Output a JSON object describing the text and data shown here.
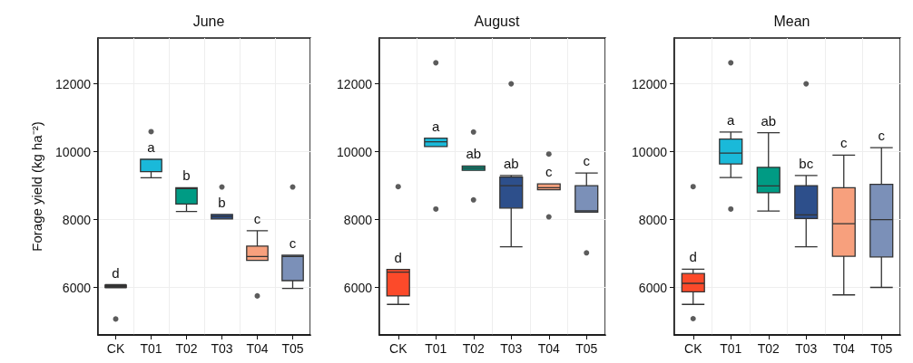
{
  "chart_data": [
    {
      "type": "box",
      "title": "June",
      "ylabel": "Forage yield (kg ha⁻²)",
      "categories": [
        "CK",
        "T01",
        "T02",
        "T03",
        "T04",
        "T05"
      ],
      "colors": [
        "#fc4a2a",
        "#1ab9d9",
        "#009b84",
        "#2d4f8b",
        "#f7a07d",
        "#7b90b8"
      ],
      "boxes": [
        {
          "low": 5990,
          "q1": 6000,
          "median": 6040,
          "q3": 6070,
          "high": 6080,
          "outliers": [
            5070
          ]
        },
        {
          "low": 9230,
          "q1": 9410,
          "median": 9770,
          "q3": 9780,
          "high": 9780,
          "outliers": [
            10590
          ]
        },
        {
          "low": 8240,
          "q1": 8460,
          "median": 8910,
          "q3": 8940,
          "high": 8940
        },
        {
          "low": 8020,
          "q1": 8020,
          "median": 8090,
          "q3": 8150,
          "high": 8150,
          "outliers": [
            8960
          ]
        },
        {
          "low": 6800,
          "q1": 6800,
          "median": 6910,
          "q3": 7220,
          "high": 7670,
          "outliers": [
            5750
          ]
        },
        {
          "low": 5970,
          "q1": 6200,
          "median": 6910,
          "q3": 6950,
          "high": 6950,
          "outliers": [
            8960
          ]
        }
      ],
      "ylim": [
        4600,
        13350
      ],
      "yticks": [
        6000,
        8000,
        10000,
        12000
      ],
      "grid": true,
      "annotations": [
        "d",
        "a",
        "b",
        "b",
        "c",
        "c"
      ]
    },
    {
      "type": "box",
      "title": "August",
      "categories": [
        "CK",
        "T01",
        "T02",
        "T03",
        "T04",
        "T05"
      ],
      "colors": [
        "#fc4a2a",
        "#1ab9d9",
        "#009b84",
        "#2d4f8b",
        "#f7a07d",
        "#7b90b8"
      ],
      "boxes": [
        {
          "low": 5500,
          "q1": 5750,
          "median": 6450,
          "q3": 6530,
          "high": 6530,
          "outliers": [
            8970
          ]
        },
        {
          "low": 10150,
          "q1": 10150,
          "median": 10290,
          "q3": 10400,
          "high": 10400,
          "outliers": [
            12620,
            8310
          ]
        },
        {
          "low": 9450,
          "q1": 9450,
          "median": 9520,
          "q3": 9580,
          "high": 9580,
          "outliers": [
            10580,
            8580
          ]
        },
        {
          "low": 7200,
          "q1": 8340,
          "median": 9000,
          "q3": 9250,
          "high": 9300,
          "outliers": [
            12000
          ]
        },
        {
          "low": 8880,
          "q1": 8880,
          "median": 8940,
          "q3": 9050,
          "high": 9050,
          "outliers": [
            9930,
            8080
          ]
        },
        {
          "low": 8220,
          "q1": 8220,
          "median": 8260,
          "q3": 9000,
          "high": 9370,
          "outliers": [
            7020
          ]
        }
      ],
      "ylim": [
        4600,
        13350
      ],
      "yticks": [
        6000,
        8000,
        10000,
        12000
      ],
      "grid": true,
      "annotations": [
        "d",
        "a",
        "ab",
        "ab",
        "c",
        "c"
      ]
    },
    {
      "type": "box",
      "title": "Mean",
      "categories": [
        "CK",
        "T01",
        "T02",
        "T03",
        "T04",
        "T05"
      ],
      "colors": [
        "#fc4a2a",
        "#1ab9d9",
        "#009b84",
        "#2d4f8b",
        "#f7a07d",
        "#7b90b8"
      ],
      "boxes": [
        {
          "low": 5500,
          "q1": 5870,
          "median": 6120,
          "q3": 6410,
          "high": 6540,
          "outliers": [
            5080,
            8970
          ]
        },
        {
          "low": 9240,
          "q1": 9640,
          "median": 9960,
          "q3": 10370,
          "high": 10580,
          "outliers": [
            12620,
            8310
          ]
        },
        {
          "low": 8250,
          "q1": 8790,
          "median": 8990,
          "q3": 9540,
          "high": 10560
        },
        {
          "low": 7200,
          "q1": 8030,
          "median": 8140,
          "q3": 9000,
          "high": 9300,
          "outliers": [
            12000
          ]
        },
        {
          "low": 5780,
          "q1": 6920,
          "median": 7880,
          "q3": 8940,
          "high": 9900
        },
        {
          "low": 6000,
          "q1": 6900,
          "median": 8000,
          "q3": 9040,
          "high": 10120
        }
      ],
      "ylim": [
        4600,
        13350
      ],
      "yticks": [
        6000,
        8000,
        10000,
        12000
      ],
      "grid": true,
      "annotations": [
        "d",
        "a",
        "ab",
        "bc",
        "c",
        "c"
      ]
    }
  ]
}
